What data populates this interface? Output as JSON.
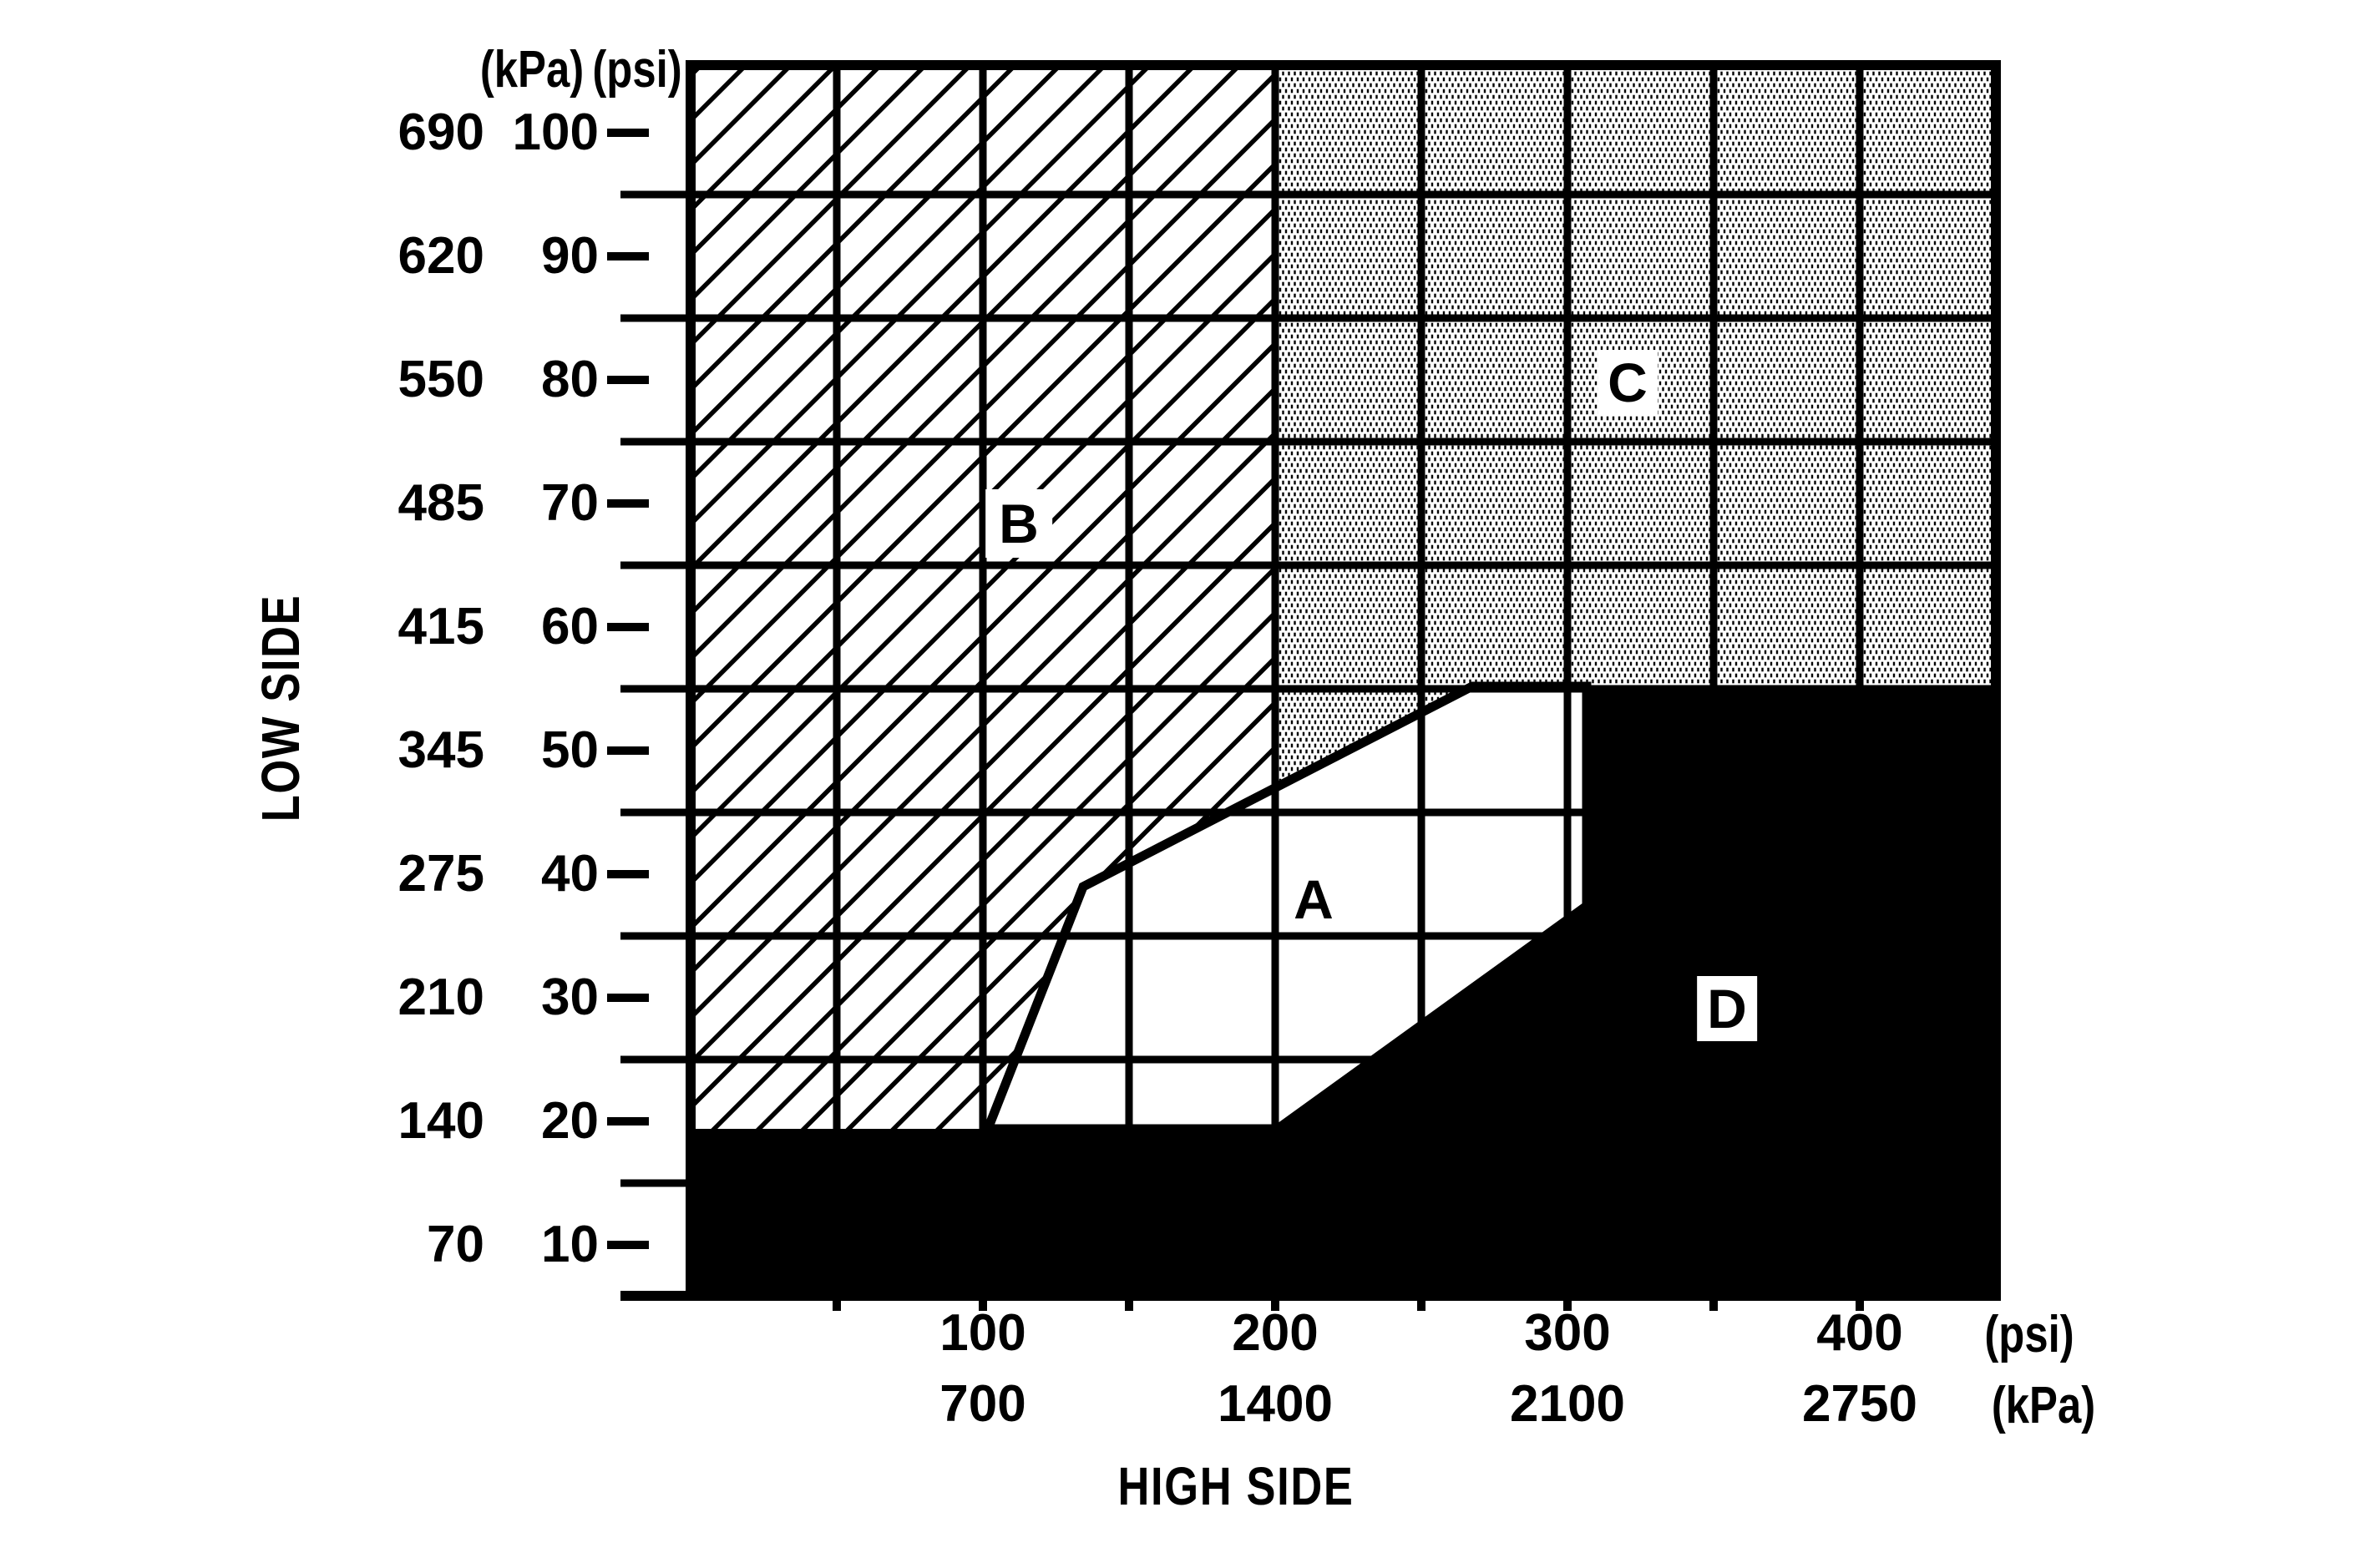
{
  "axes": {
    "y": {
      "title": "LOW SIDE",
      "unit_header_kpa": "(kPa)",
      "unit_header_psi": "(psi)",
      "rows": [
        {
          "kpa": "690",
          "psi": "100"
        },
        {
          "kpa": "620",
          "psi": "90"
        },
        {
          "kpa": "550",
          "psi": "80"
        },
        {
          "kpa": "485",
          "psi": "70"
        },
        {
          "kpa": "415",
          "psi": "60"
        },
        {
          "kpa": "345",
          "psi": "50"
        },
        {
          "kpa": "275",
          "psi": "40"
        },
        {
          "kpa": "210",
          "psi": "30"
        },
        {
          "kpa": "140",
          "psi": "20"
        },
        {
          "kpa": "70",
          "psi": "10"
        }
      ]
    },
    "x": {
      "title": "HIGH SIDE",
      "unit_label_psi": "(psi)",
      "unit_label_kpa": "(kPa)",
      "cols": [
        {
          "psi": "100",
          "kpa": "700"
        },
        {
          "psi": "200",
          "kpa": "1400"
        },
        {
          "psi": "300",
          "kpa": "2100"
        },
        {
          "psi": "400",
          "kpa": "2750"
        }
      ]
    }
  },
  "colors": {
    "ink": "#000000",
    "background": "#ffffff"
  },
  "chart_data": {
    "type": "area",
    "title": "",
    "xlabel": "HIGH SIDE",
    "ylabel": "LOW SIDE",
    "grid": "on",
    "legend": "none",
    "x_axis": {
      "primary_unit": "psi",
      "secondary_unit": "kPa",
      "tick_labels_psi": [
        100,
        200,
        300,
        400
      ],
      "tick_labels_kpa": [
        700,
        1400,
        2100,
        2750
      ],
      "minor_tick_step_psi": 50,
      "range_psi": [
        0,
        447
      ]
    },
    "y_axis": {
      "primary_unit": "psi",
      "secondary_unit": "kPa",
      "tick_labels_psi": [
        100,
        90,
        80,
        70,
        60,
        50,
        40,
        30,
        20,
        10
      ],
      "tick_labels_kpa": [
        690,
        620,
        550,
        485,
        415,
        345,
        275,
        210,
        140,
        70
      ],
      "gridlines_psi": [
        95,
        85,
        75,
        65,
        55,
        45,
        35,
        25,
        15
      ],
      "range_psi": [
        6,
        106
      ]
    },
    "regions": [
      {
        "label": "A",
        "fill": "white",
        "polygon_psi": [
          [
            102,
            20
          ],
          [
            134,
            39
          ],
          [
            267,
            55
          ],
          [
            307,
            55
          ],
          [
            307,
            38
          ],
          [
            201,
            20
          ]
        ],
        "label_pos_psi": [
          213,
          38
        ]
      },
      {
        "label": "B",
        "fill": "diagonal-hatch",
        "polygon_psi": [
          [
            0,
            106
          ],
          [
            200,
            106
          ],
          [
            200,
            47
          ],
          [
            134,
            39
          ],
          [
            102,
            20
          ],
          [
            0,
            20
          ]
        ],
        "label_pos_psi": [
          112,
          69
        ]
      },
      {
        "label": "C",
        "fill": "dot-stipple",
        "polygon_psi": [
          [
            200,
            106
          ],
          [
            447,
            106
          ],
          [
            447,
            55
          ],
          [
            267,
            55
          ],
          [
            200,
            47
          ]
        ],
        "label_pos_psi": [
          321,
          80
        ]
      },
      {
        "label": "D",
        "fill": "solid-black",
        "polygon_psi": [
          [
            307,
            55
          ],
          [
            447,
            55
          ],
          [
            447,
            6
          ],
          [
            0,
            6
          ],
          [
            0,
            20
          ],
          [
            201,
            20
          ],
          [
            307,
            38
          ]
        ],
        "label_pos_psi": [
          355,
          30
        ]
      }
    ]
  }
}
